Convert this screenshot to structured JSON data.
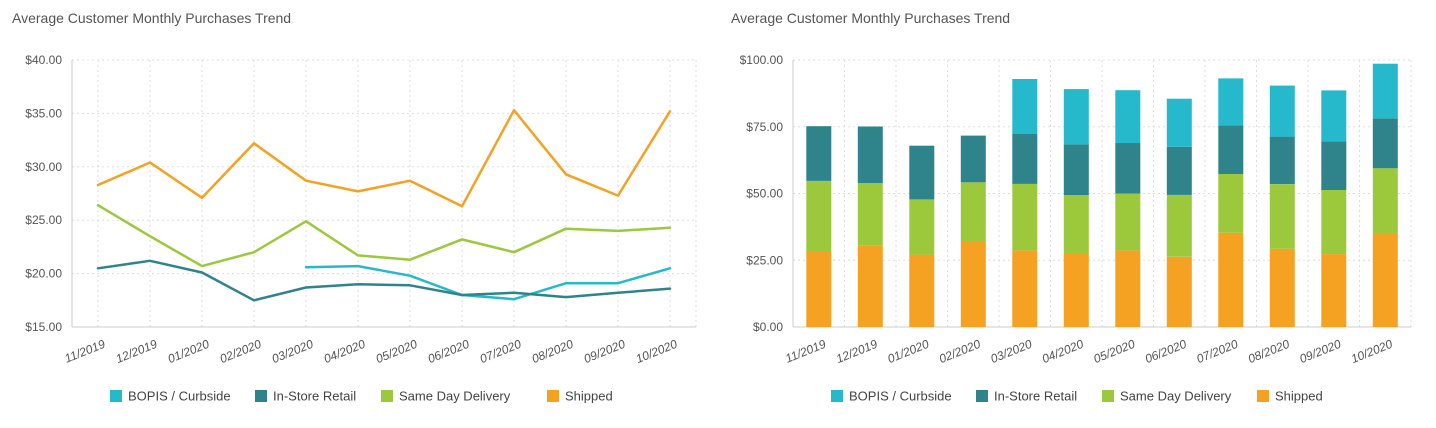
{
  "colors": {
    "bopis": "#26b9cc",
    "instore": "#2e848a",
    "sameday": "#9cc83c",
    "shipped": "#f5a122",
    "grid": "#dddddd"
  },
  "chart_data": [
    {
      "type": "line",
      "title": "Average Customer Monthly Purchases Trend",
      "categories": [
        "11/2019",
        "12/2019",
        "01/2020",
        "02/2020",
        "03/2020",
        "04/2020",
        "05/2020",
        "06/2020",
        "07/2020",
        "08/2020",
        "09/2020",
        "10/2020"
      ],
      "ylim": [
        15,
        40
      ],
      "yticks": [
        "$15.00",
        "$20.00",
        "$25.00",
        "$30.00",
        "$35.00",
        "$40.00"
      ],
      "ytick_values": [
        15,
        20,
        25,
        30,
        35,
        40
      ],
      "series": [
        {
          "name": "BOPIS / Curbside",
          "color_key": "bopis",
          "values": [
            null,
            null,
            null,
            null,
            20.6,
            20.7,
            19.8,
            18.0,
            17.6,
            19.1,
            19.1,
            20.5
          ]
        },
        {
          "name": "In-Store Retail",
          "color_key": "instore",
          "values": [
            20.5,
            21.2,
            20.1,
            17.5,
            18.7,
            19.0,
            18.9,
            18.0,
            18.2,
            17.8,
            18.2,
            18.6
          ]
        },
        {
          "name": "Same Day Delivery",
          "color_key": "sameday",
          "values": [
            26.4,
            23.5,
            20.7,
            22.0,
            24.9,
            21.7,
            21.3,
            23.2,
            22.0,
            24.2,
            24.0,
            24.3
          ]
        },
        {
          "name": "Shipped",
          "color_key": "shipped",
          "values": [
            28.3,
            30.4,
            27.1,
            32.2,
            28.7,
            27.7,
            28.7,
            26.3,
            35.3,
            29.3,
            27.3,
            35.2
          ]
        }
      ]
    },
    {
      "type": "bar",
      "stacked": true,
      "title": "Average Customer Monthly Purchases Trend",
      "categories": [
        "11/2019",
        "12/2019",
        "01/2020",
        "02/2020",
        "03/2020",
        "04/2020",
        "05/2020",
        "06/2020",
        "07/2020",
        "08/2020",
        "09/2020",
        "10/2020"
      ],
      "ylim": [
        0,
        100
      ],
      "yticks": [
        "$0.00",
        "$25.00",
        "$50.00",
        "$75.00",
        "$100.00"
      ],
      "ytick_values": [
        0,
        25,
        50,
        75,
        100
      ],
      "series": [
        {
          "name": "Shipped",
          "color_key": "shipped",
          "values": [
            28.3,
            30.4,
            27.1,
            32.2,
            28.7,
            27.7,
            28.7,
            26.3,
            35.3,
            29.3,
            27.3,
            35.2
          ]
        },
        {
          "name": "Same Day Delivery",
          "color_key": "sameday",
          "values": [
            26.4,
            23.5,
            20.7,
            22.0,
            24.9,
            21.7,
            21.3,
            23.2,
            22.0,
            24.2,
            24.0,
            24.3
          ]
        },
        {
          "name": "In-Store Retail",
          "color_key": "instore",
          "values": [
            20.5,
            21.2,
            20.1,
            17.5,
            18.7,
            19.0,
            18.9,
            18.0,
            18.2,
            17.8,
            18.2,
            18.6
          ]
        },
        {
          "name": "BOPIS / Curbside",
          "color_key": "bopis",
          "values": [
            0,
            0,
            0,
            0,
            20.6,
            20.7,
            19.8,
            18.0,
            17.6,
            19.1,
            19.1,
            20.5
          ]
        }
      ],
      "legend_order": [
        "BOPIS / Curbside",
        "In-Store Retail",
        "Same Day Delivery",
        "Shipped"
      ]
    }
  ]
}
